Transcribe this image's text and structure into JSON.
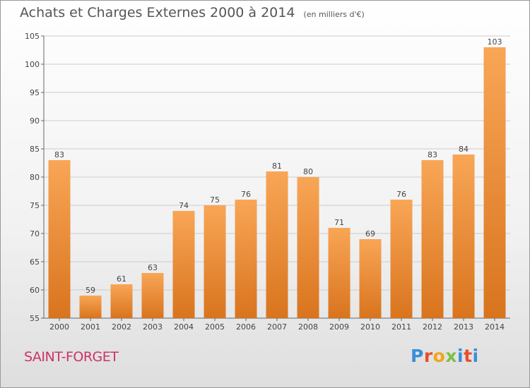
{
  "header": {
    "title": "Achats et Charges Externes 2000 à 2014",
    "subtitle": "(en milliers d'€)"
  },
  "footer": {
    "commune": "SAINT-FORGET",
    "logo": "Proxiti"
  },
  "colors": {
    "bar_light": "#f8a656",
    "bar_dark": "#d9741e",
    "grid": "#cccccc",
    "commune_text": "#cc3366"
  },
  "chart_data": {
    "type": "bar",
    "title": "Achats et Charges Externes 2000 à 2014",
    "subtitle": "(en milliers d'€)",
    "categories": [
      "2000",
      "2001",
      "2002",
      "2003",
      "2004",
      "2005",
      "2006",
      "2007",
      "2008",
      "2009",
      "2010",
      "2011",
      "2012",
      "2013",
      "2014"
    ],
    "values": [
      83,
      59,
      61,
      63,
      74,
      75,
      76,
      81,
      80,
      71,
      69,
      76,
      83,
      84,
      103
    ],
    "ylim": [
      55,
      105
    ],
    "yticks": [
      55,
      60,
      65,
      70,
      75,
      80,
      85,
      90,
      95,
      100,
      105
    ],
    "grid": true,
    "show_value_labels": true
  }
}
